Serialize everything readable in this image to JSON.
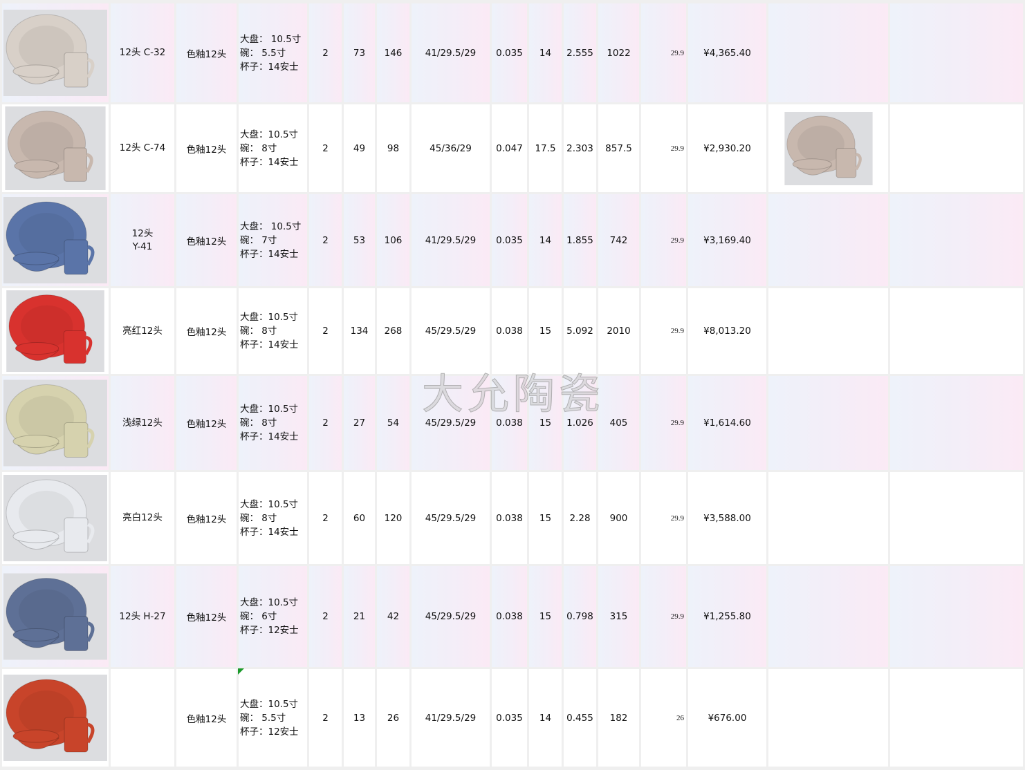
{
  "rows": [
    {
      "code": "12头 C-32",
      "code_a": "12头      C-",
      "code_b": "32",
      "type": "色釉12头",
      "spec": [
        "大盘： 10.5寸",
        "碗： 5.5寸",
        "杯子：14安士"
      ],
      "c1": "2",
      "c2": "73",
      "c3": "146",
      "size": "41/29.5/29",
      "cbm": "0.035",
      "kg": "14",
      "v1": "2.555",
      "v2": "1022",
      "price": "29.9",
      "total": "¥4,365.40",
      "color": "#d8d0c8",
      "extra_image": false
    },
    {
      "code": "12头 C-74",
      "code_a": "12头      C-",
      "code_b": "74",
      "type": "色釉12头",
      "spec": [
        "大盘：10.5寸",
        "碗：   8寸",
        "杯子：14安士"
      ],
      "c1": "2",
      "c2": "49",
      "c3": "98",
      "size": "45/36/29",
      "cbm": "0.047",
      "kg": "17.5",
      "v1": "2.303",
      "v2": "857.5",
      "price": "29.9",
      "total": "¥2,930.20",
      "color": "#c8b8ae",
      "extra_image": true
    },
    {
      "code": "12头 Y-41",
      "code_a": "12头",
      "code_b": "Y-41",
      "type": "色釉12头",
      "spec": [
        "大盘： 10.5寸",
        "碗： 7寸",
        "杯子：14安士"
      ],
      "c1": "2",
      "c2": "53",
      "c3": "106",
      "size": "41/29.5/29",
      "cbm": "0.035",
      "kg": "14",
      "v1": "1.855",
      "v2": "742",
      "price": "29.9",
      "total": "¥3,169.40",
      "color": "#5a74a8",
      "extra_image": false
    },
    {
      "code": "亮红12头",
      "code_a": "亮红12头",
      "code_b": "",
      "type": "色釉12头",
      "spec": [
        "大盘：10.5寸",
        "碗：   8寸",
        "杯子：14安士"
      ],
      "c1": "2",
      "c2": "134",
      "c3": "268",
      "size": "45/29.5/29",
      "cbm": "0.038",
      "kg": "15",
      "v1": "5.092",
      "v2": "2010",
      "price": "29.9",
      "total": "¥8,013.20",
      "color": "#d8322e",
      "extra_image": false
    },
    {
      "code": "浅绿12头",
      "code_a": "浅绿12头",
      "code_b": "",
      "type": "色釉12头",
      "spec": [
        "大盘：10.5寸",
        "碗：   8寸",
        "杯子：14安士"
      ],
      "c1": "2",
      "c2": "27",
      "c3": "54",
      "size": "45/29.5/29",
      "cbm": "0.038",
      "kg": "15",
      "v1": "1.026",
      "v2": "405",
      "price": "29.9",
      "total": "¥1,614.60",
      "color": "#d6d2ae",
      "extra_image": false
    },
    {
      "code": "亮白12头",
      "code_a": "亮白12头",
      "code_b": "",
      "type": "色釉12头",
      "spec": [
        "大盘：10.5寸",
        "碗：   8寸",
        "杯子：14安士"
      ],
      "c1": "2",
      "c2": "60",
      "c3": "120",
      "size": "45/29.5/29",
      "cbm": "0.038",
      "kg": "15",
      "v1": "2.28",
      "v2": "900",
      "price": "29.9",
      "total": "¥3,588.00",
      "color": "#e8eaee",
      "extra_image": false
    },
    {
      "code": "12头 H-27",
      "code_a": "12头      H-",
      "code_b": "27",
      "type": "色釉12头",
      "spec": [
        "大盘：10.5寸",
        "碗：   6寸",
        "杯子：12安士"
      ],
      "c1": "2",
      "c2": "21",
      "c3": "42",
      "size": "45/29.5/29",
      "cbm": "0.038",
      "kg": "15",
      "v1": "0.798",
      "v2": "315",
      "price": "29.9",
      "total": "¥1,255.80",
      "color": "#5e7096",
      "extra_image": false
    },
    {
      "code": "",
      "code_a": "",
      "code_b": "",
      "type": "色釉12头",
      "spec": [
        "大盘：10.5寸",
        "碗：   5.5寸",
        "杯子：12安士"
      ],
      "c1": "2",
      "c2": "13",
      "c3": "26",
      "size": "41/29.5/29",
      "cbm": "0.035",
      "kg": "14",
      "v1": "0.455",
      "v2": "182",
      "price": "26",
      "total": "¥676.00",
      "color": "#c8442a",
      "extra_image": false
    }
  ],
  "watermark": "大允陶瓷"
}
